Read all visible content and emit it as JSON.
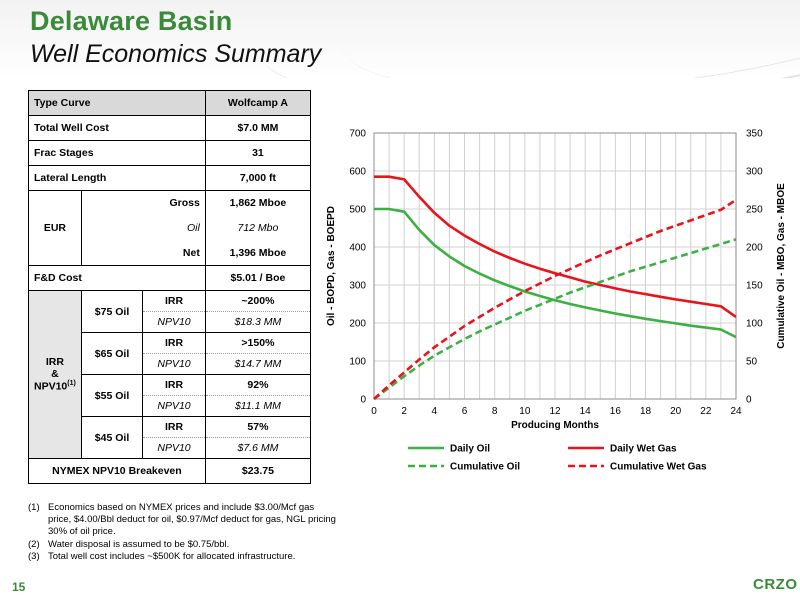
{
  "header": {
    "title": "Delaware Basin",
    "subtitle": "Well Economics Summary"
  },
  "table": {
    "head": {
      "label": "Type Curve",
      "value": "Wolfcamp A"
    },
    "total_well_cost": {
      "label": "Total Well Cost",
      "value": "$7.0 MM"
    },
    "frac_stages": {
      "label": "Frac Stages",
      "value": "31"
    },
    "lateral_length": {
      "label": "Lateral Length",
      "value": "7,000 ft"
    },
    "eur": {
      "label": "EUR",
      "rows": [
        {
          "label": "Gross",
          "value": "1,862 Mboe"
        },
        {
          "label": "Oil",
          "value": "712 Mbo"
        },
        {
          "label": "Net",
          "value": "1,396 Mboe"
        }
      ]
    },
    "fd_cost": {
      "label": "F&D Cost",
      "value": "$5.01 / Boe"
    },
    "irr_group": {
      "label_line1": "IRR",
      "label_line2": "&",
      "label_line3": "NPV10",
      "label_sup": "(1)",
      "cases": [
        {
          "price": "$75 Oil",
          "irr_label": "IRR",
          "irr": "~200%",
          "npv_label": "NPV10",
          "npv": "$18.3 MM"
        },
        {
          "price": "$65 Oil",
          "irr_label": "IRR",
          "irr": ">150%",
          "npv_label": "NPV10",
          "npv": "$14.7 MM"
        },
        {
          "price": "$55 Oil",
          "irr_label": "IRR",
          "irr": "92%",
          "npv_label": "NPV10",
          "npv": "$11.1 MM"
        },
        {
          "price": "$45 Oil",
          "irr_label": "IRR",
          "irr": "57%",
          "npv_label": "NPV10",
          "npv": "$7.6 MM"
        }
      ]
    },
    "breakeven": {
      "label": "NYMEX NPV10 Breakeven",
      "value": "$23.75"
    }
  },
  "footnotes": [
    {
      "num": "(1)",
      "text": "Economics based on NYMEX prices and include $3.00/Mcf gas price, $4.00/Bbl deduct for oil, $0.97/Mcf deduct for gas, NGL pricing 30% of oil price."
    },
    {
      "num": "(2)",
      "text": "Water disposal is assumed to be $0.75/bbl."
    },
    {
      "num": "(3)",
      "text": "Total well cost includes ~$500K for allocated infrastructure."
    }
  ],
  "page_number": "15",
  "logo_text": "CRZO",
  "colors": {
    "title_green": "#3a8a3a",
    "oil_green": "#3cb043",
    "gas_red": "#e8141b"
  },
  "chart_data": {
    "type": "line",
    "xlabel": "Producing Months",
    "ylabel_left": "Oil - BOPD, Gas - BOEPD",
    "ylabel_right": "Cumulative Oil - MBO, Gas - MBOE",
    "x_ticks": [
      0,
      2,
      4,
      6,
      8,
      10,
      12,
      14,
      16,
      18,
      20,
      22,
      24
    ],
    "xlim": [
      0,
      24
    ],
    "ylim_left": [
      0,
      700
    ],
    "y_ticks_left": [
      0,
      100,
      200,
      300,
      400,
      500,
      600,
      700
    ],
    "ylim_right": [
      0,
      350
    ],
    "y_ticks_right": [
      0,
      50,
      100,
      150,
      200,
      250,
      300,
      350
    ],
    "grid": true,
    "legend_position": "bottom",
    "x": [
      0,
      1,
      2,
      3,
      4,
      5,
      6,
      7,
      8,
      9,
      10,
      11,
      12,
      13,
      14,
      15,
      16,
      17,
      18,
      19,
      20,
      21,
      22,
      23,
      24
    ],
    "series": [
      {
        "name": "Daily Oil",
        "axis": "left",
        "style": "solid",
        "color": "#3cb043",
        "values": [
          500,
          500,
          493,
          445,
          405,
          375,
          350,
          330,
          312,
          297,
          283,
          271,
          260,
          250,
          241,
          233,
          225,
          218,
          211,
          205,
          199,
          193,
          188,
          183,
          163
        ]
      },
      {
        "name": "Daily Wet Gas",
        "axis": "left",
        "style": "solid",
        "color": "#e8141b",
        "values": [
          585,
          585,
          578,
          532,
          490,
          456,
          430,
          408,
          388,
          371,
          356,
          343,
          331,
          320,
          309,
          300,
          291,
          283,
          276,
          269,
          262,
          256,
          250,
          244,
          216
        ]
      },
      {
        "name": "Cumulative Oil",
        "axis": "right",
        "style": "dashed",
        "color": "#3cb043",
        "values": [
          0,
          15,
          30,
          44,
          57,
          68,
          79,
          89,
          98,
          107,
          116,
          124,
          132,
          140,
          147,
          154,
          161,
          168,
          174,
          180,
          186,
          192,
          198,
          204,
          210
        ]
      },
      {
        "name": "Cumulative Wet Gas",
        "axis": "right",
        "style": "dashed",
        "color": "#e8141b",
        "values": [
          0,
          18,
          35,
          52,
          68,
          82,
          96,
          108,
          120,
          131,
          142,
          152,
          162,
          171,
          180,
          189,
          197,
          205,
          213,
          221,
          228,
          235,
          242,
          249,
          262
        ]
      }
    ]
  }
}
